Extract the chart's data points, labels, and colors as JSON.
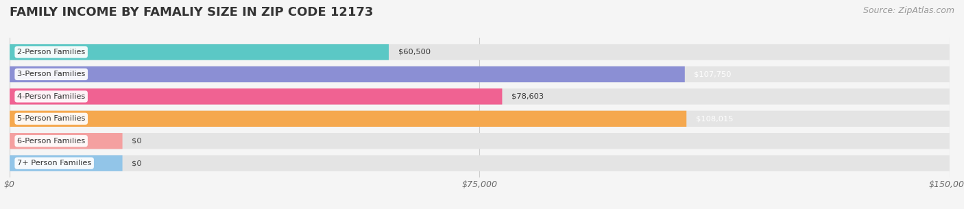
{
  "title": "FAMILY INCOME BY FAMALIY SIZE IN ZIP CODE 12173",
  "source": "Source: ZipAtlas.com",
  "categories": [
    "2-Person Families",
    "3-Person Families",
    "4-Person Families",
    "5-Person Families",
    "6-Person Families",
    "7+ Person Families"
  ],
  "values": [
    60500,
    107750,
    78603,
    108015,
    0,
    0
  ],
  "bar_colors": [
    "#5BC8C5",
    "#8B8FD4",
    "#F06292",
    "#F5A84E",
    "#F4A0A0",
    "#92C5E8"
  ],
  "value_label_colors": [
    "#333333",
    "#ffffff",
    "#333333",
    "#ffffff",
    "#333333",
    "#333333"
  ],
  "xlim": [
    0,
    150000
  ],
  "xticks": [
    0,
    75000,
    150000
  ],
  "xtick_labels": [
    "$0",
    "$75,000",
    "$150,000"
  ],
  "bg_color": "#f5f5f5",
  "bar_bg_color": "#e4e4e4",
  "title_fontsize": 13,
  "source_fontsize": 9,
  "bar_height": 0.72,
  "value_labels": [
    "$60,500",
    "$107,750",
    "$78,603",
    "$108,015",
    "$0",
    "$0"
  ],
  "zero_stub_values": [
    0,
    0,
    0,
    0,
    18000,
    18000
  ]
}
